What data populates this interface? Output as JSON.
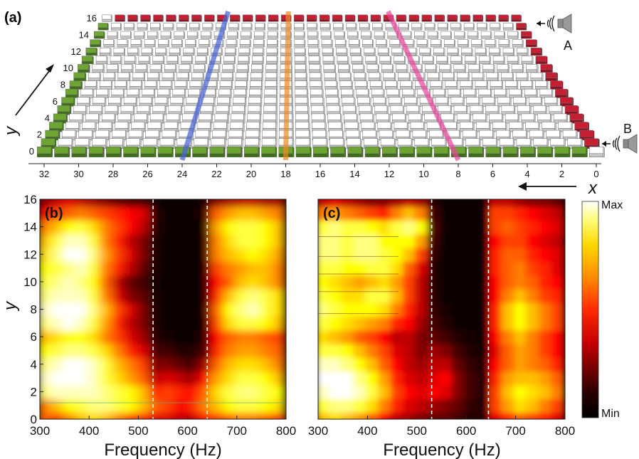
{
  "chart_data": [
    {
      "panel": "(a)",
      "type": "diagram",
      "xaxis": {
        "label": "x",
        "ticks": [
          32,
          30,
          28,
          26,
          24,
          22,
          20,
          18,
          16,
          14,
          12,
          10,
          8,
          6,
          4,
          2,
          0
        ],
        "range": [
          0,
          32
        ],
        "direction": "decreasing-to-right"
      },
      "yaxis": {
        "label": "y",
        "ticks": [
          0,
          2,
          4,
          6,
          8,
          10,
          12,
          14,
          16
        ],
        "range": [
          0,
          16
        ]
      },
      "grid": {
        "nx": 33,
        "ny": 17
      },
      "edges": {
        "top_row": "red",
        "right_column": "red",
        "bottom_row": "green",
        "left_column": "green"
      },
      "highlight_lines": [
        {
          "color": "#4a63d6",
          "x_top": 22.5,
          "x_bottom": 24
        },
        {
          "color": "#f08a24",
          "x_top": 17.8,
          "x_bottom": 18
        },
        {
          "color": "#e5489c",
          "x_top": 10,
          "x_bottom": 8
        }
      ],
      "sources": [
        {
          "label": "A",
          "y": 15
        },
        {
          "label": "B",
          "y": 0.5
        }
      ],
      "colors": {
        "red": "#c81e32",
        "green": "#6da533",
        "cell": "#ffffff",
        "cell_side": "#c7c7c7"
      }
    },
    {
      "panel": "(b)",
      "type": "heatmap",
      "xlabel": "Frequency (Hz)",
      "ylabel": "y",
      "xlim": [
        300,
        800
      ],
      "ylim": [
        0,
        16
      ],
      "xticks": [
        300,
        400,
        500,
        600,
        700,
        800
      ],
      "yticks": [
        0,
        2,
        4,
        6,
        8,
        10,
        12,
        14,
        16
      ],
      "band_lines": [
        530,
        640
      ],
      "colormap": "hot",
      "columns": [
        {
          "f": 310,
          "v": [
            0.55,
            0.6,
            0.9,
            0.95,
            0.9,
            0.8,
            0.7,
            0.9,
            0.95,
            0.9,
            0.85,
            0.8,
            0.75,
            0.7,
            0.6,
            0.4,
            0.2
          ]
        },
        {
          "f": 335,
          "v": [
            0.5,
            0.7,
            0.95,
            1.0,
            0.95,
            0.85,
            0.75,
            0.95,
            1.0,
            0.95,
            0.9,
            0.85,
            0.9,
            0.85,
            0.7,
            0.5,
            0.3
          ]
        },
        {
          "f": 360,
          "v": [
            0.6,
            0.8,
            0.95,
            1.0,
            1.0,
            0.9,
            0.8,
            1.0,
            1.0,
            0.95,
            0.95,
            0.9,
            1.0,
            0.95,
            0.8,
            0.55,
            0.35
          ]
        },
        {
          "f": 385,
          "v": [
            0.7,
            0.85,
            0.95,
            1.0,
            1.0,
            0.9,
            0.8,
            0.95,
            1.0,
            0.95,
            0.9,
            0.95,
            1.0,
            0.95,
            0.85,
            0.6,
            0.3
          ]
        },
        {
          "f": 410,
          "v": [
            0.75,
            0.9,
            0.95,
            0.95,
            0.95,
            0.85,
            0.75,
            0.85,
            0.9,
            0.85,
            0.8,
            0.85,
            0.9,
            0.85,
            0.75,
            0.55,
            0.25
          ]
        },
        {
          "f": 435,
          "v": [
            0.7,
            0.9,
            0.9,
            0.85,
            0.85,
            0.75,
            0.6,
            0.65,
            0.7,
            0.6,
            0.55,
            0.6,
            0.65,
            0.6,
            0.6,
            0.5,
            0.2
          ]
        },
        {
          "f": 460,
          "v": [
            0.6,
            0.85,
            0.85,
            0.75,
            0.7,
            0.6,
            0.5,
            0.45,
            0.5,
            0.35,
            0.3,
            0.45,
            0.5,
            0.45,
            0.5,
            0.45,
            0.15
          ]
        },
        {
          "f": 485,
          "v": [
            0.5,
            0.8,
            0.8,
            0.65,
            0.6,
            0.45,
            0.35,
            0.3,
            0.35,
            0.2,
            0.15,
            0.3,
            0.35,
            0.3,
            0.4,
            0.4,
            0.1
          ]
        },
        {
          "f": 510,
          "v": [
            0.45,
            0.7,
            0.7,
            0.55,
            0.5,
            0.35,
            0.25,
            0.2,
            0.2,
            0.15,
            0.1,
            0.15,
            0.2,
            0.2,
            0.3,
            0.35,
            0.1
          ]
        },
        {
          "f": 535,
          "v": [
            0.35,
            0.55,
            0.45,
            0.3,
            0.2,
            0.1,
            0.05,
            0.03,
            0.03,
            0.03,
            0.03,
            0.03,
            0.03,
            0.03,
            0.05,
            0.05,
            0.03
          ]
        },
        {
          "f": 560,
          "v": [
            0.35,
            0.5,
            0.5,
            0.35,
            0.2,
            0.1,
            0.03,
            0.02,
            0.02,
            0.02,
            0.02,
            0.02,
            0.02,
            0.02,
            0.02,
            0.02,
            0.02
          ]
        },
        {
          "f": 585,
          "v": [
            0.3,
            0.4,
            0.45,
            0.3,
            0.15,
            0.05,
            0.02,
            0.02,
            0.02,
            0.02,
            0.02,
            0.02,
            0.02,
            0.02,
            0.02,
            0.02,
            0.02
          ]
        },
        {
          "f": 610,
          "v": [
            0.3,
            0.45,
            0.4,
            0.25,
            0.1,
            0.05,
            0.02,
            0.02,
            0.02,
            0.02,
            0.02,
            0.02,
            0.02,
            0.02,
            0.02,
            0.02,
            0.02
          ]
        },
        {
          "f": 635,
          "v": [
            0.4,
            0.6,
            0.55,
            0.4,
            0.25,
            0.1,
            0.05,
            0.03,
            0.03,
            0.03,
            0.03,
            0.03,
            0.03,
            0.03,
            0.03,
            0.05,
            0.03
          ]
        },
        {
          "f": 660,
          "v": [
            0.5,
            0.7,
            0.75,
            0.65,
            0.55,
            0.45,
            0.4,
            0.5,
            0.55,
            0.45,
            0.4,
            0.5,
            0.6,
            0.6,
            0.65,
            0.55,
            0.2
          ]
        },
        {
          "f": 685,
          "v": [
            0.55,
            0.8,
            0.85,
            0.75,
            0.7,
            0.6,
            0.55,
            0.75,
            0.8,
            0.7,
            0.55,
            0.6,
            0.7,
            0.75,
            0.8,
            0.65,
            0.25
          ]
        },
        {
          "f": 710,
          "v": [
            0.6,
            0.85,
            0.9,
            0.85,
            0.75,
            0.65,
            0.6,
            0.85,
            0.9,
            0.85,
            0.7,
            0.65,
            0.75,
            0.85,
            0.85,
            0.7,
            0.3
          ]
        },
        {
          "f": 735,
          "v": [
            0.6,
            0.85,
            0.9,
            0.85,
            0.75,
            0.65,
            0.6,
            0.85,
            0.95,
            0.9,
            0.75,
            0.7,
            0.8,
            0.85,
            0.85,
            0.7,
            0.3
          ]
        },
        {
          "f": 760,
          "v": [
            0.55,
            0.8,
            0.85,
            0.8,
            0.7,
            0.6,
            0.55,
            0.8,
            0.85,
            0.85,
            0.7,
            0.7,
            0.75,
            0.8,
            0.8,
            0.65,
            0.25
          ]
        },
        {
          "f": 785,
          "v": [
            0.5,
            0.75,
            0.8,
            0.7,
            0.6,
            0.55,
            0.5,
            0.7,
            0.75,
            0.75,
            0.6,
            0.6,
            0.65,
            0.7,
            0.7,
            0.6,
            0.25
          ]
        }
      ]
    },
    {
      "panel": "(c)",
      "type": "heatmap",
      "xlabel": "Frequency (Hz)",
      "ylabel": "",
      "xlim": [
        300,
        800
      ],
      "ylim": [
        0,
        16
      ],
      "xticks": [
        300,
        400,
        500,
        600,
        700,
        800
      ],
      "band_lines": [
        530,
        645
      ],
      "colormap": "hot",
      "columns": [
        {
          "f": 310,
          "v": [
            0.7,
            0.85,
            0.95,
            1.0,
            0.95,
            0.85,
            0.75,
            0.85,
            0.9,
            0.85,
            0.8,
            0.85,
            0.9,
            0.9,
            0.85,
            0.6,
            0.3
          ]
        },
        {
          "f": 335,
          "v": [
            0.75,
            0.9,
            1.0,
            1.0,
            0.95,
            0.85,
            0.7,
            0.8,
            0.85,
            0.8,
            0.75,
            0.85,
            0.9,
            0.9,
            0.9,
            0.65,
            0.35
          ]
        },
        {
          "f": 360,
          "v": [
            0.7,
            0.9,
            1.0,
            1.0,
            0.9,
            0.8,
            0.65,
            0.75,
            0.8,
            0.75,
            0.7,
            0.8,
            0.85,
            0.85,
            0.85,
            0.6,
            0.3
          ]
        },
        {
          "f": 385,
          "v": [
            0.65,
            0.85,
            0.95,
            0.9,
            0.8,
            0.7,
            0.55,
            0.7,
            0.8,
            0.75,
            0.65,
            0.8,
            0.9,
            0.9,
            0.85,
            0.55,
            0.25
          ]
        },
        {
          "f": 410,
          "v": [
            0.55,
            0.75,
            0.85,
            0.8,
            0.7,
            0.6,
            0.5,
            0.65,
            0.8,
            0.85,
            0.7,
            0.85,
            0.9,
            0.9,
            0.8,
            0.5,
            0.2
          ]
        },
        {
          "f": 435,
          "v": [
            0.4,
            0.6,
            0.7,
            0.65,
            0.55,
            0.5,
            0.4,
            0.6,
            0.75,
            0.85,
            0.75,
            0.85,
            0.85,
            0.8,
            0.75,
            0.45,
            0.2
          ]
        },
        {
          "f": 460,
          "v": [
            0.3,
            0.45,
            0.5,
            0.45,
            0.4,
            0.35,
            0.3,
            0.45,
            0.6,
            0.7,
            0.65,
            0.75,
            0.8,
            0.8,
            0.85,
            0.6,
            0.25
          ]
        },
        {
          "f": 485,
          "v": [
            0.25,
            0.35,
            0.4,
            0.35,
            0.3,
            0.3,
            0.3,
            0.4,
            0.45,
            0.5,
            0.5,
            0.55,
            0.7,
            0.8,
            0.9,
            0.7,
            0.3
          ]
        },
        {
          "f": 510,
          "v": [
            0.2,
            0.3,
            0.35,
            0.3,
            0.25,
            0.2,
            0.2,
            0.25,
            0.3,
            0.3,
            0.3,
            0.35,
            0.5,
            0.65,
            0.8,
            0.6,
            0.25
          ]
        },
        {
          "f": 535,
          "v": [
            0.15,
            0.25,
            0.4,
            0.35,
            0.3,
            0.25,
            0.15,
            0.1,
            0.08,
            0.06,
            0.05,
            0.05,
            0.08,
            0.1,
            0.12,
            0.1,
            0.05
          ]
        },
        {
          "f": 560,
          "v": [
            0.15,
            0.2,
            0.35,
            0.4,
            0.3,
            0.2,
            0.1,
            0.05,
            0.03,
            0.02,
            0.02,
            0.02,
            0.02,
            0.02,
            0.02,
            0.02,
            0.02
          ]
        },
        {
          "f": 585,
          "v": [
            0.1,
            0.15,
            0.2,
            0.2,
            0.15,
            0.1,
            0.05,
            0.02,
            0.02,
            0.02,
            0.02,
            0.02,
            0.02,
            0.02,
            0.02,
            0.02,
            0.02
          ]
        },
        {
          "f": 610,
          "v": [
            0.05,
            0.08,
            0.1,
            0.1,
            0.08,
            0.05,
            0.03,
            0.02,
            0.02,
            0.02,
            0.02,
            0.02,
            0.02,
            0.02,
            0.02,
            0.02,
            0.02
          ]
        },
        {
          "f": 635,
          "v": [
            0.05,
            0.05,
            0.05,
            0.05,
            0.05,
            0.03,
            0.02,
            0.02,
            0.02,
            0.02,
            0.02,
            0.02,
            0.02,
            0.02,
            0.02,
            0.02,
            0.02
          ]
        },
        {
          "f": 660,
          "v": [
            0.35,
            0.5,
            0.5,
            0.45,
            0.4,
            0.35,
            0.4,
            0.45,
            0.45,
            0.4,
            0.4,
            0.45,
            0.45,
            0.4,
            0.5,
            0.5,
            0.3
          ]
        },
        {
          "f": 685,
          "v": [
            0.45,
            0.65,
            0.7,
            0.65,
            0.55,
            0.55,
            0.6,
            0.7,
            0.7,
            0.6,
            0.55,
            0.55,
            0.55,
            0.5,
            0.55,
            0.5,
            0.3
          ]
        },
        {
          "f": 710,
          "v": [
            0.55,
            0.75,
            0.8,
            0.7,
            0.65,
            0.65,
            0.7,
            0.8,
            0.8,
            0.7,
            0.6,
            0.6,
            0.55,
            0.5,
            0.5,
            0.45,
            0.25
          ]
        },
        {
          "f": 735,
          "v": [
            0.5,
            0.7,
            0.75,
            0.7,
            0.6,
            0.6,
            0.6,
            0.7,
            0.7,
            0.6,
            0.55,
            0.5,
            0.45,
            0.4,
            0.45,
            0.4,
            0.2
          ]
        },
        {
          "f": 760,
          "v": [
            0.45,
            0.6,
            0.7,
            0.65,
            0.55,
            0.5,
            0.5,
            0.6,
            0.6,
            0.5,
            0.45,
            0.45,
            0.4,
            0.35,
            0.4,
            0.35,
            0.2
          ]
        },
        {
          "f": 785,
          "v": [
            0.35,
            0.5,
            0.6,
            0.55,
            0.45,
            0.4,
            0.4,
            0.5,
            0.5,
            0.45,
            0.4,
            0.35,
            0.35,
            0.3,
            0.35,
            0.3,
            0.15
          ]
        }
      ]
    }
  ],
  "colorbar": {
    "max_label": "Max",
    "min_label": "Min"
  },
  "panel_labels": {
    "a": "(a)",
    "b": "(b)",
    "c": "(c)"
  },
  "source_labels": {
    "a": "A",
    "b": "B"
  },
  "axis_labels": {
    "x": "x",
    "y_a": "y",
    "y_b": "y",
    "freq_b": "Frequency (Hz)",
    "freq_c": "Frequency (Hz)"
  }
}
